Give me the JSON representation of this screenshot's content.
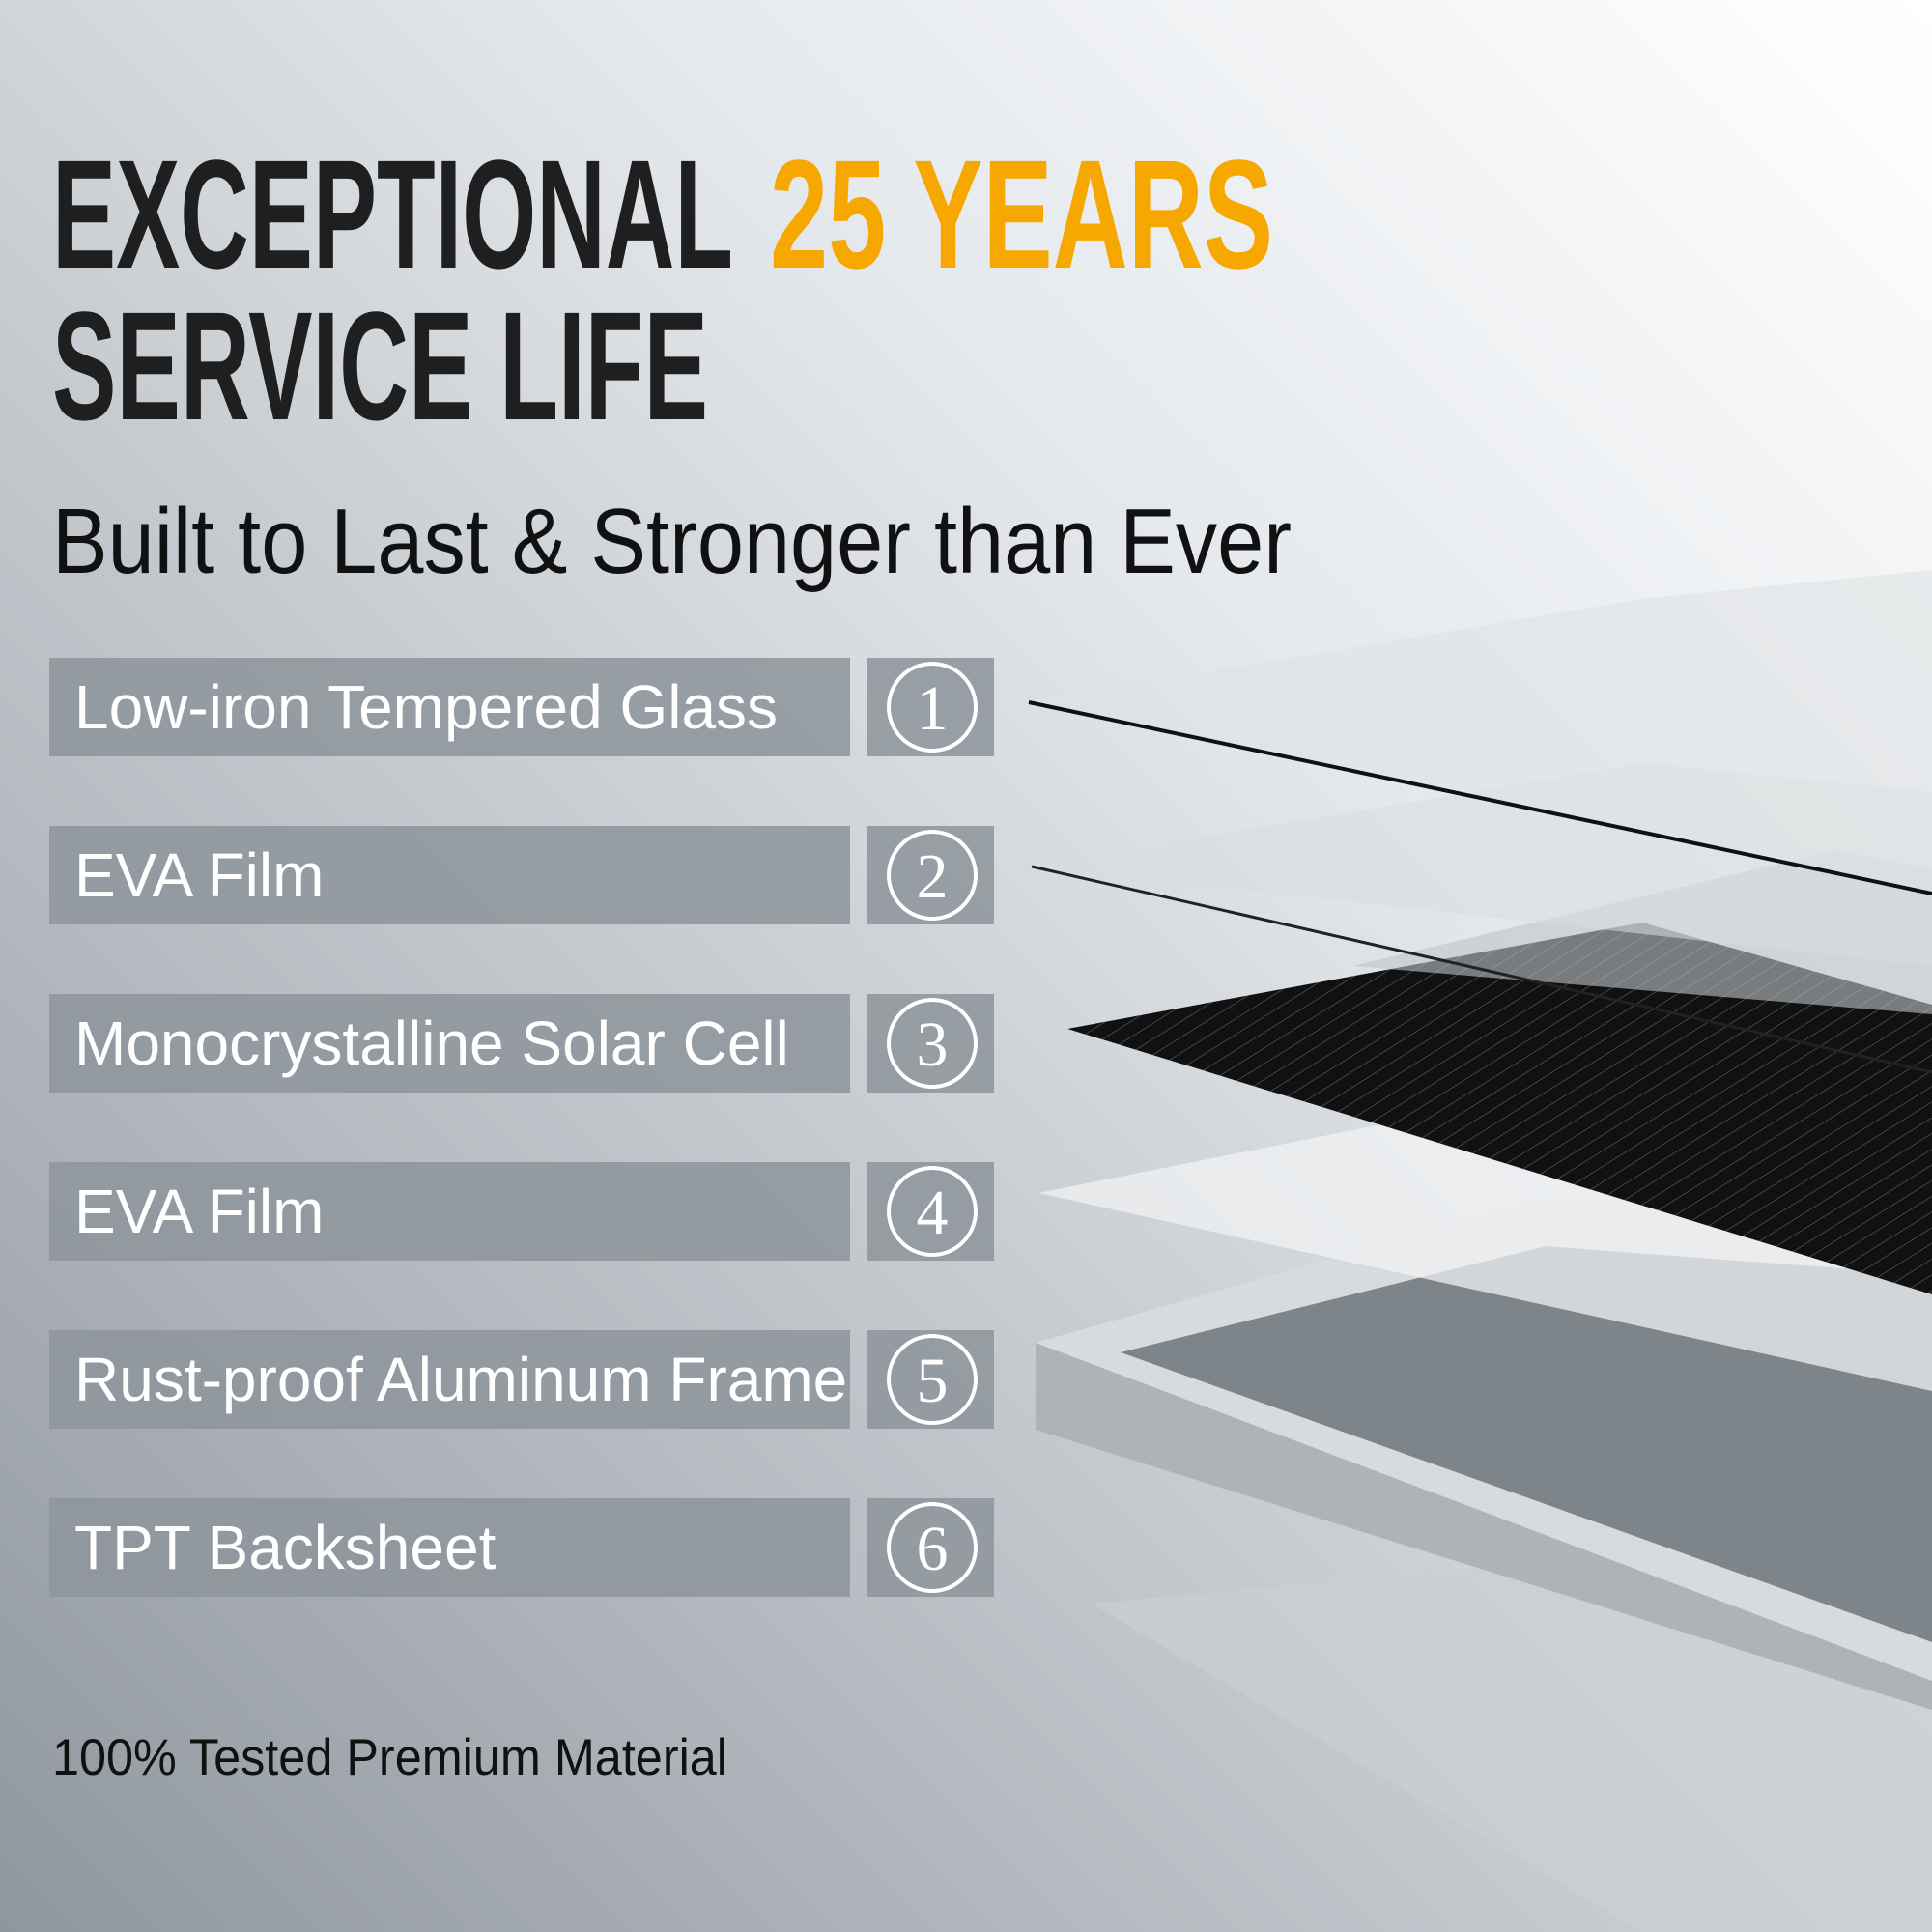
{
  "header": {
    "title_part1": "EXCEPTIONAL",
    "title_highlight": "25 YEARS",
    "title_line2": "SERVICE LIFE",
    "subtitle": "Built to Last & Stronger than Ever"
  },
  "layers": [
    {
      "label": "Low-iron Tempered Glass",
      "number": 1
    },
    {
      "label": "EVA Film",
      "number": 2
    },
    {
      "label": "Monocrystalline Solar Cell",
      "number": 3
    },
    {
      "label": "EVA Film",
      "number": 4
    },
    {
      "label": "Rust-proof Aluminum Frame",
      "number": 5
    },
    {
      "label": "TPT Backsheet",
      "number": 6
    }
  ],
  "footer": "100% Tested Premium Material"
}
